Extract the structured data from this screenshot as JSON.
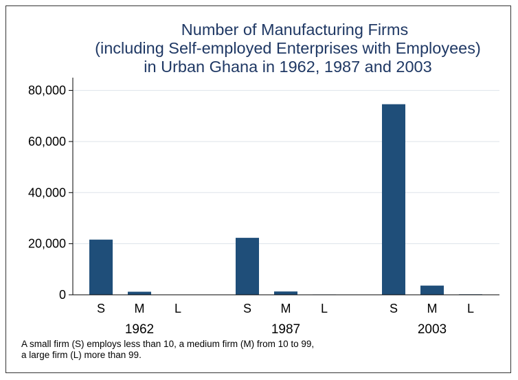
{
  "chart_data": {
    "type": "bar",
    "title_lines": [
      "Number of Manufacturing Firms",
      "(including Self-employed Enterprises with Employees)",
      "in Urban Ghana in 1962, 1987 and 2003"
    ],
    "ylim": [
      0,
      85000
    ],
    "yticks": [
      0,
      20000,
      40000,
      60000,
      80000
    ],
    "ytick_labels": [
      "0",
      "20,000",
      "40,000",
      "60,000",
      "80,000"
    ],
    "grid": true,
    "groups": [
      {
        "label": "1962",
        "bars": [
          {
            "label": "S",
            "value": 21600
          },
          {
            "label": "M",
            "value": 1200
          },
          {
            "label": "L",
            "value": 0
          }
        ]
      },
      {
        "label": "1987",
        "bars": [
          {
            "label": "S",
            "value": 22300
          },
          {
            "label": "M",
            "value": 1300
          },
          {
            "label": "L",
            "value": 150
          }
        ]
      },
      {
        "label": "2003",
        "bars": [
          {
            "label": "S",
            "value": 74600
          },
          {
            "label": "M",
            "value": 3600
          },
          {
            "label": "L",
            "value": 200
          }
        ]
      }
    ],
    "colors": {
      "bar": "#1f4e79",
      "title": "#1f3864",
      "grid": "#dde3ea",
      "axis": "#000000"
    },
    "note_lines": [
      "A small firm (S) employs less than 10, a medium firm (M) from 10 to 99,",
      "a large firm (L) more than 99."
    ]
  }
}
